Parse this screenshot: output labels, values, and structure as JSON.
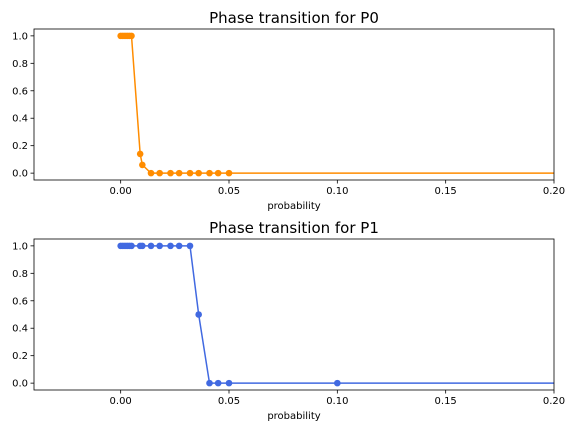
{
  "chart_data": [
    {
      "type": "line",
      "title": "Phase transition for P0",
      "xlabel": "probability",
      "ylabel": "",
      "xlim": [
        -0.04,
        0.2
      ],
      "ylim": [
        -0.05,
        1.05
      ],
      "xticks": [
        0.0,
        0.05,
        0.1,
        0.15,
        0.2
      ],
      "xtick_labels": [
        "0.00",
        "0.05",
        "0.10",
        "0.15",
        "0.20"
      ],
      "yticks": [
        0.0,
        0.2,
        0.4,
        0.6,
        0.8,
        1.0
      ],
      "ytick_labels": [
        "0.0",
        "0.2",
        "0.4",
        "0.6",
        "0.8",
        "1.0"
      ],
      "grid": false,
      "series": [
        {
          "color": "#ff8c00",
          "marker": "circle",
          "x": [
            0.0,
            0.001,
            0.002,
            0.003,
            0.004,
            0.005,
            0.009,
            0.01,
            0.014,
            0.018,
            0.023,
            0.027,
            0.032,
            0.036,
            0.041,
            0.045,
            0.05,
            0.1,
            0.2
          ],
          "y": [
            1.0,
            1.0,
            1.0,
            1.0,
            1.0,
            1.0,
            0.14,
            0.06,
            0.0,
            0.0,
            0.0,
            0.0,
            0.0,
            0.0,
            0.0,
            0.0,
            0.0,
            0.0,
            0.0
          ],
          "markers_shown": 17
        }
      ]
    },
    {
      "type": "line",
      "title": "Phase transition for P1",
      "xlabel": "probability",
      "ylabel": "",
      "xlim": [
        -0.04,
        0.2
      ],
      "ylim": [
        -0.05,
        1.05
      ],
      "xticks": [
        0.0,
        0.05,
        0.1,
        0.15,
        0.2
      ],
      "xtick_labels": [
        "0.00",
        "0.05",
        "0.10",
        "0.15",
        "0.20"
      ],
      "yticks": [
        0.0,
        0.2,
        0.4,
        0.6,
        0.8,
        1.0
      ],
      "ytick_labels": [
        "0.0",
        "0.2",
        "0.4",
        "0.6",
        "0.8",
        "1.0"
      ],
      "grid": false,
      "series": [
        {
          "color": "#4169e1",
          "marker": "circle",
          "x": [
            0.0,
            0.001,
            0.002,
            0.003,
            0.004,
            0.005,
            0.009,
            0.01,
            0.014,
            0.018,
            0.023,
            0.027,
            0.032,
            0.036,
            0.041,
            0.045,
            0.05,
            0.1,
            0.2
          ],
          "y": [
            1.0,
            1.0,
            1.0,
            1.0,
            1.0,
            1.0,
            1.0,
            1.0,
            1.0,
            1.0,
            1.0,
            1.0,
            1.0,
            0.5,
            0.0,
            0.0,
            0.0,
            0.0,
            0.0
          ],
          "markers_shown": 18
        }
      ]
    }
  ]
}
